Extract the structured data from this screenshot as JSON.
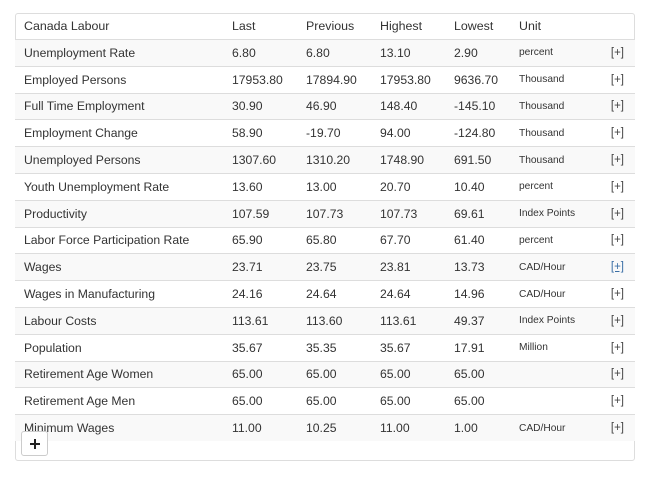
{
  "table": {
    "headers": {
      "name": "Canada Labour",
      "last": "Last",
      "previous": "Previous",
      "highest": "Highest",
      "lowest": "Lowest",
      "unit": "Unit"
    },
    "more_label": "[+]",
    "rows": [
      {
        "name": "Unemployment Rate",
        "last": "6.80",
        "previous": "6.80",
        "highest": "13.10",
        "lowest": "2.90",
        "unit": "percent"
      },
      {
        "name": "Employed Persons",
        "last": "17953.80",
        "previous": "17894.90",
        "highest": "17953.80",
        "lowest": "9636.70",
        "unit": "Thousand"
      },
      {
        "name": "Full Time Employment",
        "last": "30.90",
        "previous": "46.90",
        "highest": "148.40",
        "lowest": "-145.10",
        "unit": "Thousand"
      },
      {
        "name": "Employment Change",
        "last": "58.90",
        "previous": "-19.70",
        "highest": "94.00",
        "lowest": "-124.80",
        "unit": "Thousand"
      },
      {
        "name": "Unemployed Persons",
        "last": "1307.60",
        "previous": "1310.20",
        "highest": "1748.90",
        "lowest": "691.50",
        "unit": "Thousand"
      },
      {
        "name": "Youth Unemployment Rate",
        "last": "13.60",
        "previous": "13.00",
        "highest": "20.70",
        "lowest": "10.40",
        "unit": "percent"
      },
      {
        "name": "Productivity",
        "last": "107.59",
        "previous": "107.73",
        "highest": "107.73",
        "lowest": "69.61",
        "unit": "Index Points"
      },
      {
        "name": "Labor Force Participation Rate",
        "last": "65.90",
        "previous": "65.80",
        "highest": "67.70",
        "lowest": "61.40",
        "unit": "percent"
      },
      {
        "name": "Wages",
        "last": "23.71",
        "previous": "23.75",
        "highest": "23.81",
        "lowest": "13.73",
        "unit": "CAD/Hour"
      },
      {
        "name": "Wages in Manufacturing",
        "last": "24.16",
        "previous": "24.64",
        "highest": "24.64",
        "lowest": "14.96",
        "unit": "CAD/Hour"
      },
      {
        "name": "Labour Costs",
        "last": "113.61",
        "previous": "113.60",
        "highest": "113.61",
        "lowest": "49.37",
        "unit": "Index Points"
      },
      {
        "name": "Population",
        "last": "35.67",
        "previous": "35.35",
        "highest": "35.67",
        "lowest": "17.91",
        "unit": "Million"
      },
      {
        "name": "Retirement Age Women",
        "last": "65.00",
        "previous": "65.00",
        "highest": "65.00",
        "lowest": "65.00",
        "unit": ""
      },
      {
        "name": "Retirement Age Men",
        "last": "65.00",
        "previous": "65.00",
        "highest": "65.00",
        "lowest": "65.00",
        "unit": ""
      },
      {
        "name": "Minimum Wages",
        "last": "11.00",
        "previous": "10.25",
        "highest": "11.00",
        "lowest": "1.00",
        "unit": "CAD/Hour"
      }
    ]
  },
  "add_button": {
    "icon": "plus-icon"
  }
}
